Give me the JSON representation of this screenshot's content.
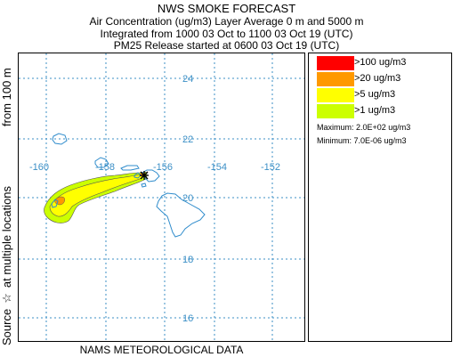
{
  "header": {
    "title": "NWS SMOKE FORECAST",
    "line1": "Air Concentration (ug/m3) Layer Average     0 m and  5000 m",
    "line2": "Integrated from 1000 03 Oct to 1100 03 Oct 19 (UTC)",
    "line3": "PM25 Release started at 0600 03 Oct 19 (UTC)"
  },
  "side_labels": {
    "left_parts": [
      "Source",
      "☆",
      "at multiple locations"
    ],
    "top": "from   100 m"
  },
  "footer": "NAMS METEOROLOGICAL DATA",
  "map": {
    "lon_labels": [
      "-160",
      "-158",
      "-156",
      "-154",
      "-152"
    ],
    "lat_labels": [
      "24",
      "22",
      "20",
      "18",
      "16"
    ],
    "gridline_color": "#3b8fc6",
    "coast_color": "#2f8ccc"
  },
  "legend": {
    "entries": [
      {
        "label": ">100 ug/m3",
        "color": "#ff0000"
      },
      {
        "label": ">20 ug/m3",
        "color": "#ff9900"
      },
      {
        "label": ">5 ug/m3",
        "color": "#ffff00"
      },
      {
        "label": ">1 ug/m3",
        "color": "#ccff00"
      }
    ],
    "maximum": "Maximum: 2.0E+02 ug/m3",
    "minimum": "Minimum: 7.0E-06 ug/m3"
  }
}
